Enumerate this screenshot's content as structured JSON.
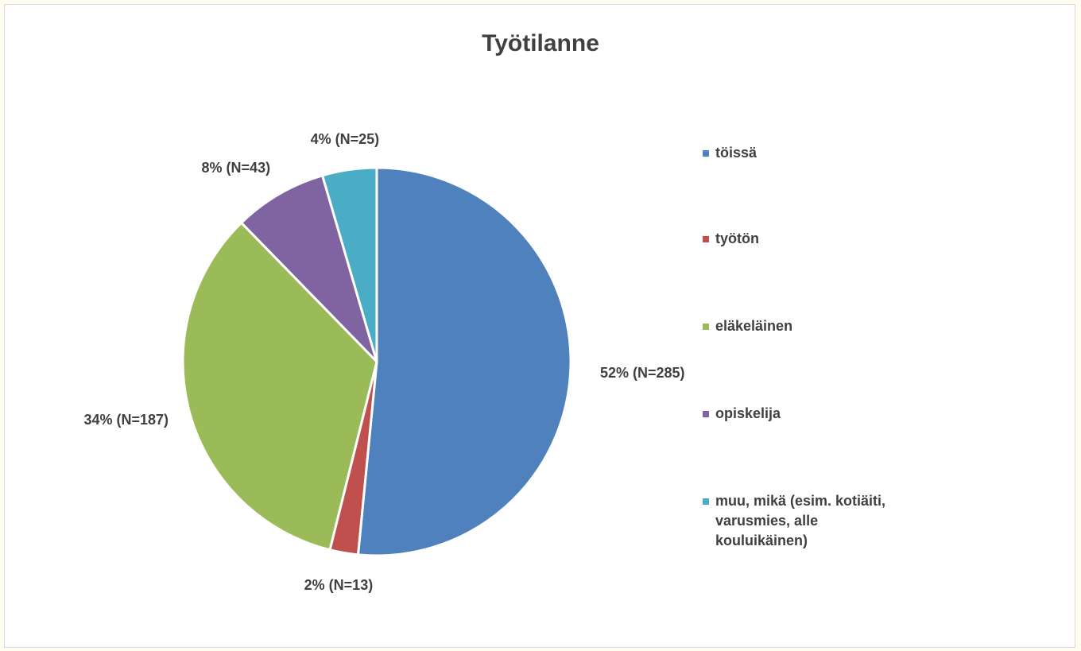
{
  "chart_data": {
    "type": "pie",
    "title": "Työtilanne",
    "start_angle_deg": 0,
    "direction": "clockwise",
    "legend_position": "right",
    "slices": [
      {
        "name": "töissä",
        "count": 285,
        "percent": 52,
        "label": "52% (N=285)",
        "color": "#4f81bd"
      },
      {
        "name": "työtön",
        "count": 13,
        "percent": 2,
        "label": "2% (N=13)",
        "color": "#c0504d"
      },
      {
        "name": "eläkeläinen",
        "count": 187,
        "percent": 34,
        "label": "34% (N=187)",
        "color": "#9bbb59"
      },
      {
        "name": "opiskelija",
        "count": 43,
        "percent": 8,
        "label": "8% (N=43)",
        "color": "#8064a2"
      },
      {
        "name": "muu, mikä (esim. kotiäiti, varusmies, alle kouluikäinen)",
        "count": 25,
        "percent": 4,
        "label": "4% (N=25)",
        "color": "#4bacc6"
      }
    ]
  },
  "legend": {
    "items": [
      {
        "text": "töissä",
        "color": "#4f81bd"
      },
      {
        "text": "työtön",
        "color": "#c0504d"
      },
      {
        "text": "eläkeläinen",
        "color": "#9bbb59"
      },
      {
        "text": "opiskelija",
        "color": "#8064a2"
      },
      {
        "lines": [
          "muu, mikä (esim. kotiäiti,",
          "varusmies, alle",
          "kouluikäinen)"
        ],
        "color": "#4bacc6"
      }
    ]
  }
}
